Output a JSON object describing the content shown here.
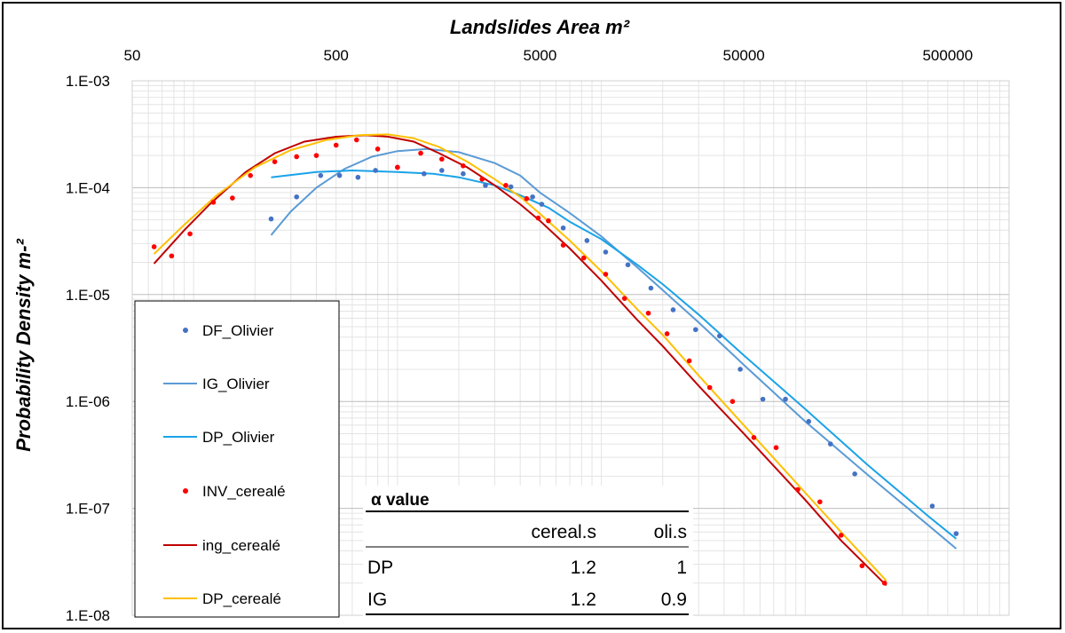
{
  "chart_data": {
    "type": "scatter",
    "title": "",
    "xlabel": "Landslides Area m²",
    "ylabel": "Probability Density m-²",
    "x_scale": "log",
    "y_scale": "log",
    "xlim": [
      50,
      1000000
    ],
    "ylim": [
      1e-08,
      0.001
    ],
    "x_ticks": [
      50,
      500,
      5000,
      50000,
      500000
    ],
    "x_tick_labels": [
      "50",
      "500",
      "5000",
      "50000",
      "500000"
    ],
    "y_ticks": [
      0.001,
      0.0001,
      1e-05,
      1e-06,
      1e-07,
      1e-08
    ],
    "y_tick_labels": [
      "1.E-03",
      "1.E-04",
      "1.E-05",
      "1.E-06",
      "1.E-07",
      "1.E-08"
    ],
    "grid": true,
    "legend_position": "bottom-left",
    "series": [
      {
        "name": "DF_Olivier",
        "kind": "points",
        "color": "#4472C4",
        "points": [
          [
            240,
            5.1e-05
          ],
          [
            320,
            8.2e-05
          ],
          [
            420,
            0.00013
          ],
          [
            520,
            0.00013
          ],
          [
            640,
            0.000125
          ],
          [
            780,
            0.000145
          ],
          [
            1000,
            0.000155
          ],
          [
            1350,
            0.000135
          ],
          [
            1650,
            0.000145
          ],
          [
            2100,
            0.000135
          ],
          [
            2700,
            0.000105
          ],
          [
            3600,
            0.000102
          ],
          [
            4600,
            8.2e-05
          ],
          [
            5100,
            7e-05
          ],
          [
            6500,
            4.2e-05
          ],
          [
            8500,
            3.2e-05
          ],
          [
            10500,
            2.5e-05
          ],
          [
            13500,
            1.9e-05
          ],
          [
            17500,
            1.15e-05
          ],
          [
            22500,
            7.2e-06
          ],
          [
            29000,
            4.7e-06
          ],
          [
            38000,
            4.1e-06
          ],
          [
            48000,
            2e-06
          ],
          [
            62000,
            1.05e-06
          ],
          [
            80000,
            1.05e-06
          ],
          [
            104000,
            6.5e-07
          ],
          [
            133000,
            4e-07
          ],
          [
            175000,
            2.1e-07
          ],
          [
            420000,
            1.05e-07
          ],
          [
            550000,
            5.8e-08
          ]
        ]
      },
      {
        "name": "IG_Olivier",
        "kind": "line",
        "color": "#5B9BD5",
        "points": [
          [
            240,
            3.6e-05
          ],
          [
            300,
            6e-05
          ],
          [
            400,
            0.0001
          ],
          [
            550,
            0.00015
          ],
          [
            750,
            0.000195
          ],
          [
            1000,
            0.00022
          ],
          [
            1400,
            0.00023
          ],
          [
            2000,
            0.000215
          ],
          [
            3000,
            0.00017
          ],
          [
            4000,
            0.00013
          ],
          [
            5000,
            9e-05
          ],
          [
            7000,
            5.8e-05
          ],
          [
            10000,
            3.5e-05
          ],
          [
            15000,
            1.8e-05
          ],
          [
            20000,
            1.1e-05
          ],
          [
            30000,
            5.5e-06
          ],
          [
            50000,
            2.2e-06
          ],
          [
            100000,
            6.5e-07
          ],
          [
            200000,
            2.1e-07
          ],
          [
            400000,
            7e-08
          ],
          [
            550000,
            4.2e-08
          ]
        ]
      },
      {
        "name": "DP_Olivier",
        "kind": "line",
        "color": "#1AA3E8",
        "points": [
          [
            240,
            0.000125
          ],
          [
            400,
            0.00014
          ],
          [
            600,
            0.000145
          ],
          [
            1000,
            0.00014
          ],
          [
            1500,
            0.000135
          ],
          [
            2000,
            0.000125
          ],
          [
            3000,
            0.000105
          ],
          [
            4000,
            8.5e-05
          ],
          [
            5500,
            6.5e-05
          ],
          [
            7000,
            4.8e-05
          ],
          [
            10000,
            3.3e-05
          ],
          [
            15000,
            1.9e-05
          ],
          [
            20000,
            1.25e-05
          ],
          [
            30000,
            6.5e-06
          ],
          [
            50000,
            2.7e-06
          ],
          [
            100000,
            8.5e-07
          ],
          [
            200000,
            2.6e-07
          ],
          [
            400000,
            8.5e-08
          ],
          [
            550000,
            5.2e-08
          ]
        ]
      },
      {
        "name": "INV_cerealé",
        "kind": "points",
        "color": "#FF0000",
        "points": [
          [
            64,
            2.8e-05
          ],
          [
            78,
            2.3e-05
          ],
          [
            96,
            3.7e-05
          ],
          [
            125,
            7.3e-05
          ],
          [
            155,
            8e-05
          ],
          [
            190,
            0.00013
          ],
          [
            250,
            0.000175
          ],
          [
            320,
            0.000195
          ],
          [
            400,
            0.0002
          ],
          [
            500,
            0.00025
          ],
          [
            630,
            0.00028
          ],
          [
            800,
            0.00023
          ],
          [
            1000,
            0.000155
          ],
          [
            1300,
            0.00021
          ],
          [
            1650,
            0.000185
          ],
          [
            2100,
            0.00016
          ],
          [
            2600,
            0.00012
          ],
          [
            3400,
            0.000105
          ],
          [
            4300,
            7.9e-05
          ],
          [
            4900,
            5.2e-05
          ],
          [
            5500,
            4.9e-05
          ],
          [
            6500,
            2.9e-05
          ],
          [
            8200,
            2.2e-05
          ],
          [
            10500,
            1.55e-05
          ],
          [
            13000,
            9.2e-06
          ],
          [
            17000,
            6.7e-06
          ],
          [
            21000,
            4.3e-06
          ],
          [
            27000,
            2.4e-06
          ],
          [
            34000,
            1.35e-06
          ],
          [
            44000,
            1e-06
          ],
          [
            56000,
            4.6e-07
          ],
          [
            72000,
            3.7e-07
          ],
          [
            92000,
            1.5e-07
          ],
          [
            118000,
            1.15e-07
          ],
          [
            150000,
            5.6e-08
          ],
          [
            190000,
            2.9e-08
          ],
          [
            245000,
            2e-08
          ]
        ]
      },
      {
        "name": "ing_cerealé",
        "kind": "line",
        "color": "#C00000",
        "points": [
          [
            64,
            1.95e-05
          ],
          [
            90,
            4e-05
          ],
          [
            120,
            7e-05
          ],
          [
            180,
            0.00014
          ],
          [
            250,
            0.00021
          ],
          [
            350,
            0.00027
          ],
          [
            500,
            0.0003
          ],
          [
            700,
            0.00031
          ],
          [
            900,
            0.0003
          ],
          [
            1200,
            0.00027
          ],
          [
            1600,
            0.00021
          ],
          [
            2200,
            0.000155
          ],
          [
            3000,
            0.000105
          ],
          [
            4000,
            7e-05
          ],
          [
            5000,
            4.9e-05
          ],
          [
            7000,
            2.7e-05
          ],
          [
            10000,
            1.35e-05
          ],
          [
            15000,
            5.8e-06
          ],
          [
            20000,
            3.3e-06
          ],
          [
            30000,
            1.4e-06
          ],
          [
            50000,
            5e-07
          ],
          [
            100000,
            1.2e-07
          ],
          [
            150000,
            5e-08
          ],
          [
            250000,
            1.9e-08
          ]
        ]
      },
      {
        "name": "DP_cerealé",
        "kind": "line",
        "color": "#FFC000",
        "points": [
          [
            64,
            2.4e-05
          ],
          [
            90,
            4.5e-05
          ],
          [
            130,
            8.5e-05
          ],
          [
            200,
            0.000155
          ],
          [
            300,
            0.000225
          ],
          [
            450,
            0.00028
          ],
          [
            650,
            0.00031
          ],
          [
            900,
            0.000315
          ],
          [
            1200,
            0.00029
          ],
          [
            1600,
            0.00024
          ],
          [
            2200,
            0.000175
          ],
          [
            3000,
            0.00012
          ],
          [
            4000,
            8.2e-05
          ],
          [
            5000,
            5.7e-05
          ],
          [
            7000,
            3.2e-05
          ],
          [
            10000,
            1.65e-05
          ],
          [
            15000,
            7.3e-06
          ],
          [
            20000,
            4.2e-06
          ],
          [
            30000,
            1.75e-06
          ],
          [
            50000,
            6e-07
          ],
          [
            100000,
            1.4e-07
          ],
          [
            150000,
            6e-08
          ],
          [
            250000,
            2.1e-08
          ]
        ]
      }
    ]
  },
  "table": {
    "title": "α value",
    "columns": [
      "cereal.s",
      "oli.s"
    ],
    "rows": [
      {
        "label": "DP",
        "values": [
          "1.2",
          "1"
        ]
      },
      {
        "label": "IG",
        "values": [
          "1.2",
          "0.9"
        ]
      }
    ]
  }
}
